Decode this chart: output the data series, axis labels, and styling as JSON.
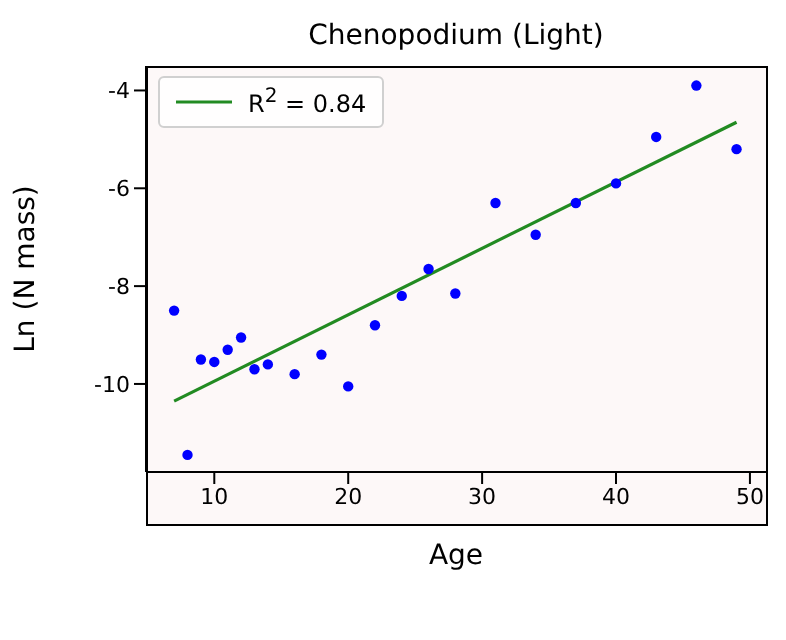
{
  "chart_data": {
    "type": "scatter",
    "title": "Chenopodium (Light)",
    "xlabel": "Age",
    "ylabel": "Ln (N mass)",
    "xlim": [
      4.9,
      51.2
    ],
    "xticks": [
      10,
      20,
      30,
      40,
      50
    ],
    "ylim": [
      -11.8,
      -3.5
    ],
    "yticks": [
      -10,
      -8,
      -6,
      -4
    ],
    "legend": "top left",
    "series": [
      {
        "color": "#0000ff",
        "marker": "circle",
        "x": [
          7,
          8,
          9,
          10,
          11,
          12,
          13,
          14,
          16,
          18,
          20,
          22,
          24,
          26,
          28,
          31,
          34,
          37,
          40,
          43,
          46,
          49
        ],
        "values": [
          -8.5,
          -11.45,
          -9.5,
          -9.55,
          -9.3,
          -9.05,
          -9.7,
          -9.6,
          -9.8,
          -9.4,
          -10.05,
          -8.8,
          -8.2,
          -7.65,
          -8.15,
          -6.3,
          -6.95,
          -6.3,
          -5.9,
          -4.95,
          -3.9,
          -5.2
        ]
      },
      {
        "type": "line",
        "name": "R$^{2}$ = 0.84",
        "color": "#228b22",
        "line_style": "solid",
        "x": [
          7,
          49
        ],
        "values": [
          -10.35,
          -4.65
        ]
      }
    ]
  }
}
